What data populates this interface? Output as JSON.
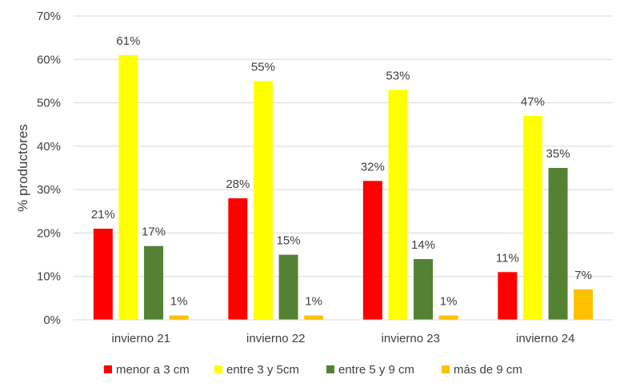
{
  "chart_data": {
    "type": "bar",
    "title": "",
    "xlabel": "",
    "ylabel": "% productores",
    "ylim": [
      0,
      70
    ],
    "yticks": [
      "0%",
      "10%",
      "20%",
      "30%",
      "40%",
      "50%",
      "60%",
      "70%"
    ],
    "grid": true,
    "legend_position": "bottom",
    "categories": [
      "invierno 21",
      "invierno 22",
      "invierno 23",
      "invierno 24"
    ],
    "series": [
      {
        "name": "menor a 3 cm",
        "color": "#ff0000",
        "values": [
          21,
          28,
          32,
          11
        ],
        "value_labels": [
          "21%",
          "28%",
          "32%",
          "11%"
        ]
      },
      {
        "name": "entre 3 y 5cm",
        "color": "#ffff00",
        "values": [
          61,
          55,
          53,
          47
        ],
        "value_labels": [
          "61%",
          "55%",
          "53%",
          "47%"
        ]
      },
      {
        "name": "entre 5 y 9 cm",
        "color": "#548235",
        "values": [
          17,
          15,
          14,
          35
        ],
        "value_labels": [
          "17%",
          "15%",
          "14%",
          "35%"
        ]
      },
      {
        "name": "más de 9 cm",
        "color": "#ffc000",
        "values": [
          1,
          1,
          1,
          7
        ],
        "value_labels": [
          "1%",
          "1%",
          "1%",
          "7%"
        ]
      }
    ]
  }
}
